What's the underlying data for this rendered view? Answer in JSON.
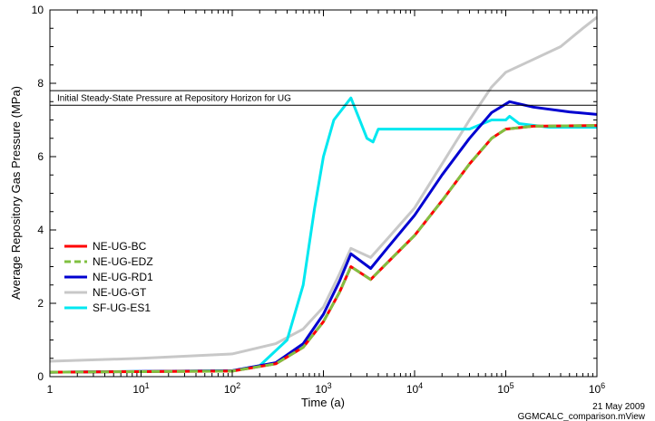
{
  "chart_data": {
    "type": "line",
    "xlabel": "Time (a)",
    "ylabel": "Average Repository Gas Pressure (MPa)",
    "x_scale": "log",
    "xlim": [
      1,
      1000000
    ],
    "ylim": [
      0,
      10
    ],
    "x_ticks": [
      {
        "value": 1,
        "base": "1",
        "exp": ""
      },
      {
        "value": 10,
        "base": "10",
        "exp": "1"
      },
      {
        "value": 100,
        "base": "10",
        "exp": "2"
      },
      {
        "value": 1000,
        "base": "10",
        "exp": "3"
      },
      {
        "value": 10000,
        "base": "10",
        "exp": "4"
      },
      {
        "value": 100000,
        "base": "10",
        "exp": "5"
      },
      {
        "value": 1000000,
        "base": "10",
        "exp": "6"
      }
    ],
    "y_ticks": [
      "0",
      "2",
      "4",
      "6",
      "8",
      "10"
    ],
    "grid": false,
    "legend_position": "left-middle",
    "reference_lines": [
      {
        "y": 7.8,
        "label": ""
      },
      {
        "y": 7.4,
        "label": "Initial Steady-State Pressure at Repository Horizon for UG"
      }
    ],
    "series": [
      {
        "name": "NE-UG-BC",
        "color": "#ff0000",
        "dash": "solid",
        "points": [
          [
            1,
            0.12
          ],
          [
            100,
            0.15
          ],
          [
            300,
            0.35
          ],
          [
            600,
            0.8
          ],
          [
            1000,
            1.5
          ],
          [
            1500,
            2.3
          ],
          [
            2000,
            3.0
          ],
          [
            3300,
            2.65
          ],
          [
            5000,
            3.1
          ],
          [
            10000,
            3.85
          ],
          [
            20000,
            4.8
          ],
          [
            40000,
            5.8
          ],
          [
            70000,
            6.5
          ],
          [
            100000,
            6.75
          ],
          [
            200000,
            6.83
          ],
          [
            1000000,
            6.85
          ]
        ]
      },
      {
        "name": "NE-UG-EDZ",
        "color": "#80c040",
        "dash": "dashed",
        "points": [
          [
            1,
            0.12
          ],
          [
            100,
            0.15
          ],
          [
            300,
            0.35
          ],
          [
            600,
            0.8
          ],
          [
            1000,
            1.5
          ],
          [
            1500,
            2.3
          ],
          [
            2000,
            3.0
          ],
          [
            3300,
            2.65
          ],
          [
            5000,
            3.1
          ],
          [
            10000,
            3.85
          ],
          [
            20000,
            4.8
          ],
          [
            40000,
            5.8
          ],
          [
            70000,
            6.5
          ],
          [
            100000,
            6.75
          ],
          [
            200000,
            6.83
          ],
          [
            1000000,
            6.85
          ]
        ]
      },
      {
        "name": "NE-UG-RD1",
        "color": "#0000d0",
        "dash": "solid",
        "points": [
          [
            1,
            0.12
          ],
          [
            100,
            0.16
          ],
          [
            300,
            0.38
          ],
          [
            600,
            0.9
          ],
          [
            1000,
            1.7
          ],
          [
            1500,
            2.6
          ],
          [
            2000,
            3.35
          ],
          [
            3300,
            2.95
          ],
          [
            5000,
            3.5
          ],
          [
            10000,
            4.4
          ],
          [
            20000,
            5.5
          ],
          [
            40000,
            6.5
          ],
          [
            70000,
            7.2
          ],
          [
            110000,
            7.5
          ],
          [
            200000,
            7.35
          ],
          [
            500000,
            7.22
          ],
          [
            1000000,
            7.15
          ]
        ]
      },
      {
        "name": "NE-UG-GT",
        "color": "#c8c8c8",
        "dash": "solid",
        "points": [
          [
            1,
            0.42
          ],
          [
            10,
            0.5
          ],
          [
            100,
            0.62
          ],
          [
            300,
            0.9
          ],
          [
            600,
            1.3
          ],
          [
            1000,
            1.9
          ],
          [
            1500,
            2.8
          ],
          [
            2000,
            3.5
          ],
          [
            3300,
            3.25
          ],
          [
            5000,
            3.75
          ],
          [
            10000,
            4.6
          ],
          [
            20000,
            5.8
          ],
          [
            40000,
            7.0
          ],
          [
            70000,
            7.9
          ],
          [
            100000,
            8.3
          ],
          [
            200000,
            8.65
          ],
          [
            400000,
            9.0
          ],
          [
            700000,
            9.5
          ],
          [
            1000000,
            9.8
          ]
        ]
      },
      {
        "name": "SF-UG-ES1",
        "color": "#00e8f0",
        "dash": "solid",
        "points": [
          [
            1,
            0.12
          ],
          [
            100,
            0.16
          ],
          [
            200,
            0.3
          ],
          [
            400,
            1.0
          ],
          [
            600,
            2.5
          ],
          [
            800,
            4.6
          ],
          [
            1000,
            6.0
          ],
          [
            1300,
            7.0
          ],
          [
            2000,
            7.6
          ],
          [
            2500,
            7.0
          ],
          [
            3000,
            6.5
          ],
          [
            3500,
            6.4
          ],
          [
            4000,
            6.75
          ],
          [
            10000,
            6.75
          ],
          [
            40000,
            6.75
          ],
          [
            70000,
            7.0
          ],
          [
            100000,
            7.0
          ],
          [
            110000,
            7.1
          ],
          [
            140000,
            6.9
          ],
          [
            300000,
            6.8
          ],
          [
            1000000,
            6.8
          ]
        ]
      }
    ]
  },
  "footer": {
    "date": "21 May 2009",
    "file": "GGMCALC_comparison.mView"
  }
}
